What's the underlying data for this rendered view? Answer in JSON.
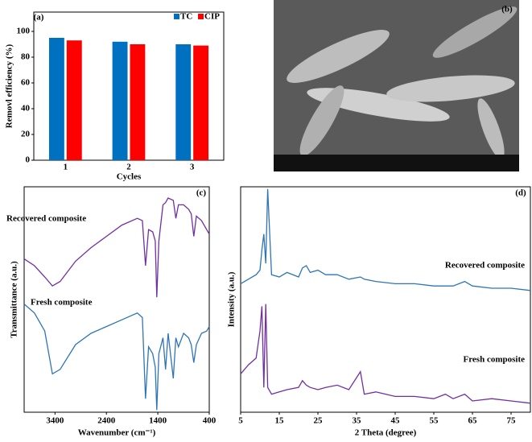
{
  "chart_data": [
    {
      "type": "bar",
      "panel_label": "(a)",
      "xlabel": "Cycles",
      "ylabel": "Removl efficiency (%)",
      "categories": [
        "1",
        "2",
        "3"
      ],
      "series": [
        {
          "name": "TC",
          "color": "#0070c0",
          "values": [
            95,
            92,
            90
          ]
        },
        {
          "name": "CIP",
          "color": "#ff0000",
          "values": [
            93,
            90,
            89
          ]
        }
      ],
      "ylim": [
        0,
        115
      ],
      "yticks": [
        0,
        20,
        40,
        60,
        80,
        100
      ],
      "legend": "top-right"
    },
    {
      "type": "image",
      "panel_label": "(b)"
    },
    {
      "type": "line",
      "panel_label": "(c)",
      "xlabel": "Wavenumber (cm⁻¹)",
      "ylabel": "Transmittance (a.u.)",
      "xlim": [
        4000,
        400
      ],
      "xticks": [
        3400,
        2400,
        1400,
        400
      ],
      "ylim": [
        0,
        100
      ],
      "annotations": [
        "Recovered composite",
        "Fresh composite"
      ],
      "x": [
        4000,
        3800,
        3600,
        3450,
        3300,
        3000,
        2700,
        2400,
        2100,
        1800,
        1700,
        1640,
        1580,
        1500,
        1450,
        1420,
        1380,
        1300,
        1250,
        1200,
        1100,
        1050,
        1000,
        900,
        800,
        750,
        700,
        650,
        550,
        450,
        400
      ],
      "series": [
        {
          "name": "Recovered composite",
          "color": "#7030a0",
          "values": [
            68,
            65,
            60,
            56,
            58,
            67,
            73,
            78,
            83,
            86,
            85,
            65,
            81,
            80,
            76,
            51,
            76,
            92,
            93,
            95,
            94,
            86,
            92,
            92,
            90,
            88,
            78,
            87,
            85,
            81,
            79
          ]
        },
        {
          "name": "Fresh composite",
          "color": "#2e75b6",
          "values": [
            48,
            44,
            36,
            17,
            19,
            30,
            35,
            38,
            41,
            44,
            42,
            6,
            29,
            26,
            20,
            1,
            26,
            33,
            19,
            35,
            15,
            33,
            29,
            35,
            33,
            30,
            22,
            30,
            35,
            36,
            38
          ]
        }
      ]
    },
    {
      "type": "line",
      "panel_label": "(d)",
      "xlabel": "2 Theta (degree)",
      "ylabel": "Intensity (a.u.)",
      "xlim": [
        5,
        80
      ],
      "xticks": [
        5,
        15,
        25,
        35,
        45,
        55,
        65,
        75
      ],
      "ylim": [
        0,
        100
      ],
      "annotations": [
        "Recovered composite",
        "Fresh composite"
      ],
      "x": [
        5,
        7,
        9,
        10,
        10.5,
        11,
        11.5,
        12,
        13,
        15,
        17,
        20,
        21,
        22,
        23,
        25,
        27,
        30,
        33,
        36,
        37,
        40,
        45,
        50,
        55,
        58,
        60,
        63,
        65,
        70,
        75,
        80
      ],
      "series": [
        {
          "name": "Recovered composite",
          "color": "#2e75b6",
          "values": [
            57,
            59,
            61,
            63,
            72,
            79,
            66,
            99,
            61,
            60,
            62,
            60,
            64,
            65,
            62,
            63,
            61,
            61,
            59,
            60,
            59,
            58,
            57,
            57,
            56,
            56,
            56,
            58,
            56,
            55,
            55,
            54
          ]
        },
        {
          "name": "Fresh composite",
          "color": "#7030a0",
          "values": [
            17,
            21,
            24,
            36,
            47,
            11,
            48,
            11,
            8,
            9,
            10,
            11,
            14,
            12,
            11,
            10,
            11,
            12,
            10,
            18,
            8,
            9,
            7,
            7,
            6,
            8,
            6,
            8,
            5,
            6,
            5,
            4
          ]
        }
      ]
    }
  ]
}
